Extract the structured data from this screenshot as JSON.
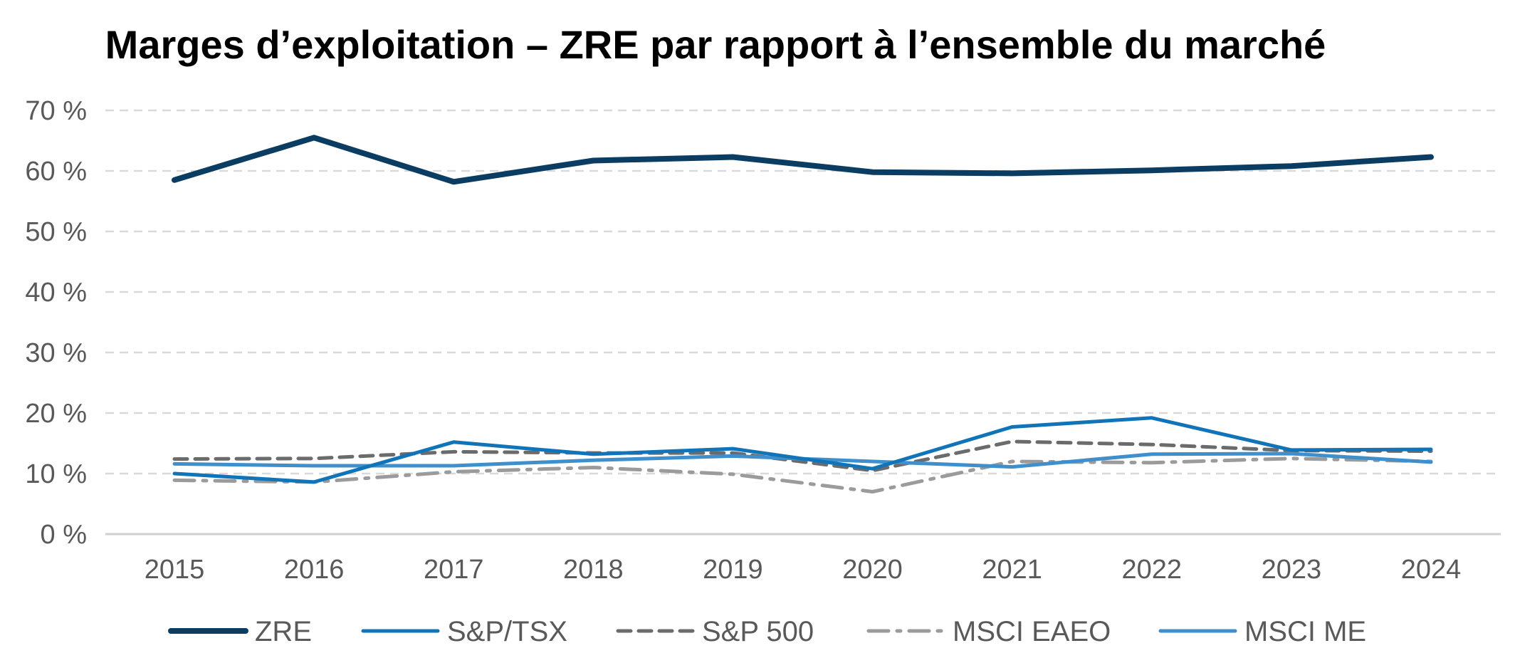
{
  "chart_data": {
    "type": "line",
    "title": "Marges d’exploitation – ZRE par rapport à l’ensemble du marché",
    "x": [
      "2015",
      "2016",
      "2017",
      "2018",
      "2019",
      "2020",
      "2021",
      "2022",
      "2023",
      "2024"
    ],
    "y_ticks": [
      "0 %",
      "10 %",
      "20 %",
      "30 %",
      "40 %",
      "50 %",
      "60 %",
      "70 %"
    ],
    "ylim": [
      0,
      70
    ],
    "grid": true,
    "legend_position": "bottom",
    "series": [
      {
        "name": "ZRE",
        "values": [
          58.5,
          65.5,
          58.2,
          61.7,
          62.3,
          59.8,
          59.6,
          60.1,
          60.8,
          62.3
        ],
        "color": "#0B3D63",
        "style": "solid-thick"
      },
      {
        "name": "S&P/TSX",
        "values": [
          10.0,
          8.6,
          15.2,
          13.2,
          14.1,
          10.8,
          17.7,
          19.2,
          13.9,
          14.0
        ],
        "color": "#1274B8",
        "style": "solid"
      },
      {
        "name": "S&P 500",
        "values": [
          12.4,
          12.5,
          13.6,
          13.4,
          13.4,
          10.5,
          15.3,
          14.8,
          13.8,
          13.7
        ],
        "color": "#6B6B6B",
        "style": "dash"
      },
      {
        "name": "MSCI EAEO",
        "values": [
          8.9,
          8.6,
          10.3,
          11.0,
          9.9,
          7.0,
          12.0,
          11.8,
          12.5,
          12.0
        ],
        "color": "#9B9B9B",
        "style": "dashdot"
      },
      {
        "name": "MSCI ME",
        "values": [
          11.6,
          11.3,
          11.3,
          12.2,
          12.9,
          12.0,
          11.1,
          13.2,
          13.3,
          11.9
        ],
        "color": "#3F8FCC",
        "style": "solid"
      }
    ]
  }
}
